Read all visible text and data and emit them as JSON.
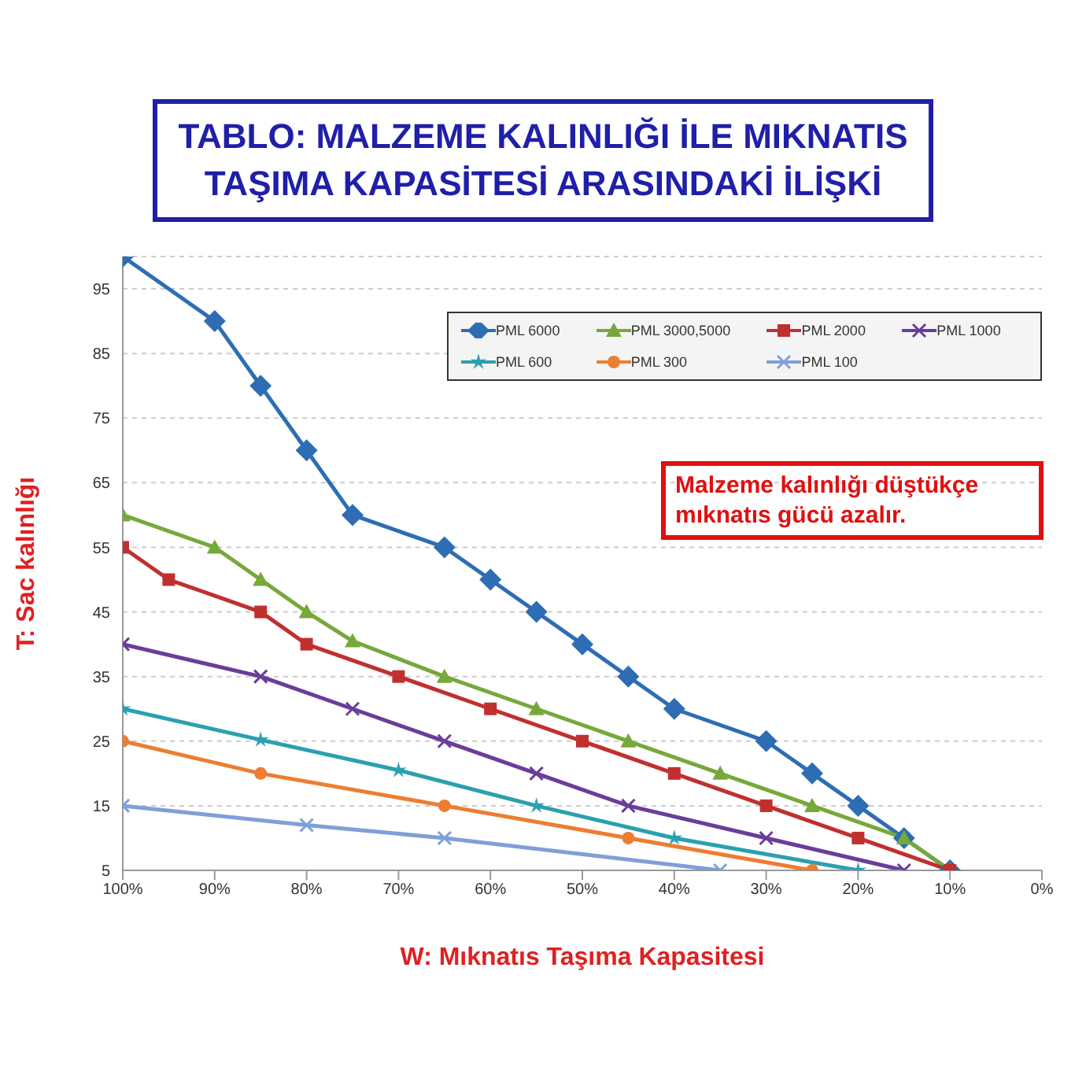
{
  "chart_data": {
    "type": "line",
    "title": "TABLO: MALZEME KALINLIĞI İLE MIKNATIS TAŞIMA KAPASİTESİ ARASINDAKİ İLİŞKİ",
    "xlabel": "W: Mıknatıs Taşıma Kapasitesi",
    "ylabel": "T: Sac kalınlığı",
    "annotations": [
      "Malzeme kalınlığı düştükçe mıknatıs gücü azalır."
    ],
    "xlim": [
      100,
      0
    ],
    "xticks": [
      {
        "value": 100,
        "label": "100%"
      },
      {
        "value": 90,
        "label": "90%"
      },
      {
        "value": 80,
        "label": "80%"
      },
      {
        "value": 70,
        "label": "70%"
      },
      {
        "value": 60,
        "label": "60%"
      },
      {
        "value": 50,
        "label": "50%"
      },
      {
        "value": 40,
        "label": "40%"
      },
      {
        "value": 30,
        "label": "30%"
      },
      {
        "value": 20,
        "label": "20%"
      },
      {
        "value": 10,
        "label": "10%"
      },
      {
        "value": 0,
        "label": "0%"
      }
    ],
    "ylim": [
      5,
      100
    ],
    "yticks": [
      5,
      15,
      25,
      35,
      45,
      55,
      65,
      75,
      85,
      95
    ],
    "grid": "y",
    "legend": "top right",
    "series": [
      {
        "name": "PML 6000",
        "color": "#2e6db4",
        "marker": "diamond",
        "x": [
          100,
          90,
          85,
          80,
          75,
          65,
          60,
          55,
          50,
          45,
          40,
          30,
          25,
          20,
          15,
          10
        ],
        "values": [
          100,
          90,
          80,
          70,
          60,
          55,
          50,
          45,
          40,
          35,
          30,
          25,
          20,
          15,
          10,
          5
        ]
      },
      {
        "name": "PML 3000,5000",
        "color": "#77a83a",
        "marker": "triangle",
        "x": [
          100,
          90,
          85,
          80,
          75,
          65,
          55,
          45,
          35,
          25,
          15,
          10
        ],
        "values": [
          60,
          55,
          50,
          45,
          40.5,
          35,
          30,
          25,
          20,
          15,
          10,
          5
        ]
      },
      {
        "name": "PML 2000",
        "color": "#c0302f",
        "marker": "square",
        "x": [
          100,
          95,
          85,
          80,
          70,
          60,
          50,
          40,
          30,
          20,
          10
        ],
        "values": [
          55,
          50,
          45,
          40,
          35,
          30,
          25,
          20,
          15,
          10,
          5
        ]
      },
      {
        "name": "PML 1000",
        "color": "#6a3d9a",
        "marker": "cross",
        "x": [
          100,
          85,
          75,
          65,
          55,
          45,
          30,
          15
        ],
        "values": [
          40,
          35,
          30,
          25,
          20,
          15,
          10,
          5
        ]
      },
      {
        "name": "PML 600",
        "color": "#2aa0b0",
        "marker": "star",
        "x": [
          100,
          85,
          70,
          55,
          40,
          20
        ],
        "values": [
          30,
          25.2,
          20.5,
          15,
          10,
          5
        ]
      },
      {
        "name": "PML 300",
        "color": "#ed7d31",
        "marker": "circle",
        "x": [
          100,
          85,
          65,
          45,
          25
        ],
        "values": [
          25,
          20,
          15,
          10,
          5
        ]
      },
      {
        "name": "PML 100",
        "color": "#7f9fd8",
        "marker": "cross",
        "x": [
          100,
          80,
          65,
          35
        ],
        "values": [
          15,
          12,
          10,
          5
        ]
      }
    ]
  }
}
